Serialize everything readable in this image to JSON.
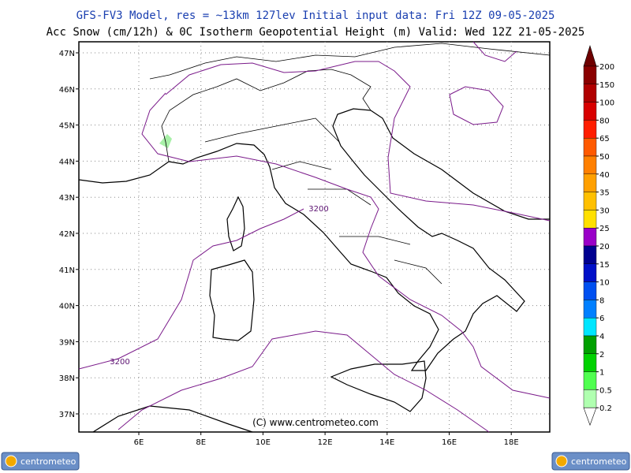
{
  "header": {
    "line1": "GFS-FV3 Model, res = ~13km 127lev   Initial input data: Fri 12Z 09-05-2025",
    "line2": "Acc Snow (cm/12h) & 0C Isotherm Geopotential Height (m)  Valid: Wed 12Z 21-05-2025"
  },
  "map": {
    "lon_labels": [
      "6E",
      "8E",
      "10E",
      "12E",
      "14E",
      "16E",
      "18E"
    ],
    "lat_labels": [
      "47N",
      "46N",
      "45N",
      "44N",
      "43N",
      "42N",
      "41N",
      "40N",
      "39N",
      "38N",
      "37N"
    ],
    "contour_labels": [
      "3200",
      "3200"
    ],
    "copyright": "(C) www.centrometeo.com",
    "grid": true
  },
  "colorbar": {
    "labels": [
      "200",
      "150",
      "100",
      "80",
      "65",
      "50",
      "40",
      "35",
      "30",
      "25",
      "20",
      "15",
      "10",
      "8",
      "6",
      "4",
      "2",
      "1",
      "0.5",
      "0.2"
    ],
    "colors": [
      "#8a0000",
      "#b00000",
      "#d80000",
      "#ff1e00",
      "#ff5a00",
      "#ff8000",
      "#ffa000",
      "#ffc000",
      "#ffe000",
      "#9a00c8",
      "#000090",
      "#0010c8",
      "#0050f0",
      "#0080ff",
      "#00e6ff",
      "#00a000",
      "#00d200",
      "#50ff50",
      "#b0ffb0"
    ],
    "above_color": "#6e0000",
    "below_color": "#ffffff"
  },
  "logos": [
    "centrometeo",
    "centrometeo"
  ]
}
